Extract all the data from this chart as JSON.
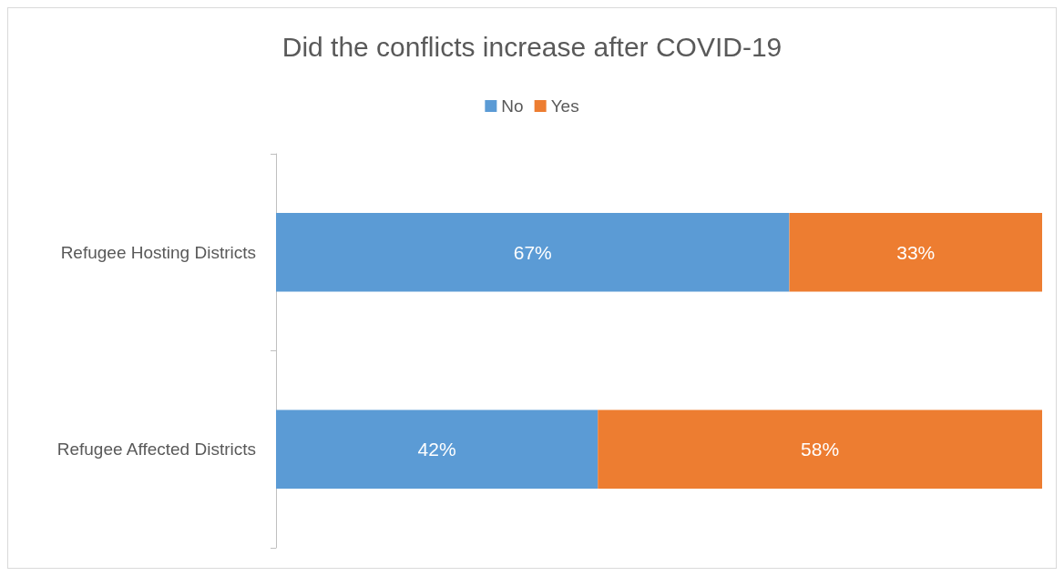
{
  "chart_data": {
    "type": "bar",
    "orientation": "horizontal",
    "stacked": true,
    "title": "Did the conflicts increase after COVID-19",
    "categories": [
      "Refugee Hosting Districts",
      "Refugee Affected Districts"
    ],
    "series": [
      {
        "name": "No",
        "color": "#5b9bd5",
        "values": [
          67,
          42
        ],
        "value_labels": [
          "67%",
          "42%"
        ]
      },
      {
        "name": "Yes",
        "color": "#ed7d31",
        "values": [
          33,
          58
        ],
        "value_labels": [
          "33%",
          "58%"
        ]
      }
    ],
    "xlim": [
      0,
      100
    ],
    "legend": "top",
    "grid": false
  }
}
